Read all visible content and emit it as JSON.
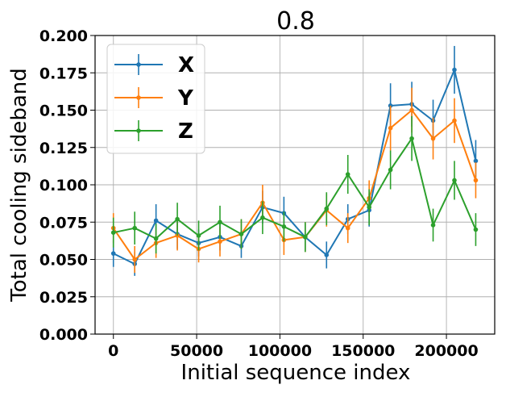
{
  "chart_data": {
    "type": "line",
    "title": "0.8",
    "xlabel": "Initial sequence index",
    "ylabel": "Total cooling sideband",
    "xlim": [
      -11000,
      229000
    ],
    "ylim": [
      0.0,
      0.2
    ],
    "xticks": [
      0,
      50000,
      100000,
      150000,
      200000
    ],
    "xtick_labels": [
      "0",
      "50000",
      "100000",
      "150000",
      "200000"
    ],
    "yticks": [
      0.0,
      0.025,
      0.05,
      0.075,
      0.1,
      0.125,
      0.15,
      0.175,
      0.2
    ],
    "ytick_labels": [
      "0.000",
      "0.025",
      "0.050",
      "0.075",
      "0.100",
      "0.125",
      "0.150",
      "0.175",
      "0.200"
    ],
    "grid": true,
    "legend_position": "top-left",
    "x": [
      0,
      12800,
      25600,
      38400,
      51200,
      64000,
      76800,
      89600,
      102400,
      115200,
      128000,
      140800,
      153600,
      166400,
      179200,
      192000,
      204800,
      217600
    ],
    "series": [
      {
        "name": "X",
        "color": "#1f77b4",
        "values": [
          0.054,
          0.047,
          0.076,
          0.067,
          0.061,
          0.065,
          0.059,
          0.085,
          0.081,
          0.065,
          0.053,
          0.077,
          0.083,
          0.153,
          0.154,
          0.143,
          0.177,
          0.116
        ],
        "errors": [
          0.009,
          0.008,
          0.011,
          0.01,
          0.009,
          0.009,
          0.008,
          0.011,
          0.011,
          0.009,
          0.009,
          0.01,
          0.011,
          0.015,
          0.015,
          0.014,
          0.016,
          0.014
        ]
      },
      {
        "name": "Y",
        "color": "#ff7f0e",
        "values": [
          0.071,
          0.05,
          0.061,
          0.066,
          0.057,
          0.062,
          0.067,
          0.088,
          0.063,
          0.065,
          0.083,
          0.071,
          0.091,
          0.138,
          0.15,
          0.131,
          0.143,
          0.103
        ],
        "errors": [
          0.01,
          0.009,
          0.01,
          0.01,
          0.009,
          0.01,
          0.01,
          0.012,
          0.01,
          0.01,
          0.011,
          0.01,
          0.012,
          0.015,
          0.015,
          0.014,
          0.015,
          0.012
        ]
      },
      {
        "name": "Z",
        "color": "#2ca02c",
        "values": [
          0.068,
          0.071,
          0.064,
          0.077,
          0.066,
          0.075,
          0.067,
          0.078,
          0.072,
          0.065,
          0.084,
          0.107,
          0.085,
          0.11,
          0.131,
          0.073,
          0.103,
          0.07
        ],
        "errors": [
          0.01,
          0.011,
          0.01,
          0.011,
          0.01,
          0.011,
          0.01,
          0.011,
          0.01,
          0.01,
          0.011,
          0.013,
          0.012,
          0.013,
          0.015,
          0.011,
          0.013,
          0.011
        ]
      }
    ]
  }
}
